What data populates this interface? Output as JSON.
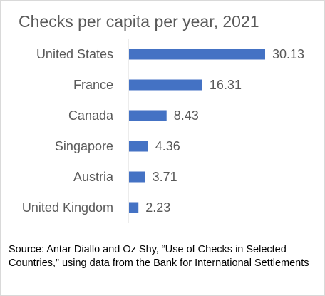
{
  "chart_data": {
    "type": "bar",
    "orientation": "horizontal",
    "title": "Checks per capita per year, 2021",
    "categories": [
      "United States",
      "France",
      "Canada",
      "Singapore",
      "Austria",
      "United Kingdom"
    ],
    "values": [
      30.13,
      16.31,
      8.43,
      4.36,
      3.71,
      2.23
    ],
    "value_labels": [
      "30.13",
      "16.31",
      "8.43",
      "4.36",
      "3.71",
      "2.23"
    ],
    "xlim": [
      0,
      32
    ],
    "grid": false,
    "legend": "none",
    "bar_color": "#4472c4",
    "axis_color": "#d9d9d9",
    "label_color": "#595959"
  },
  "source_note": "Source: Antar Diallo and Oz Shy, “Use of Checks in Selected Countries,” using data from the Bank for International Settlements"
}
